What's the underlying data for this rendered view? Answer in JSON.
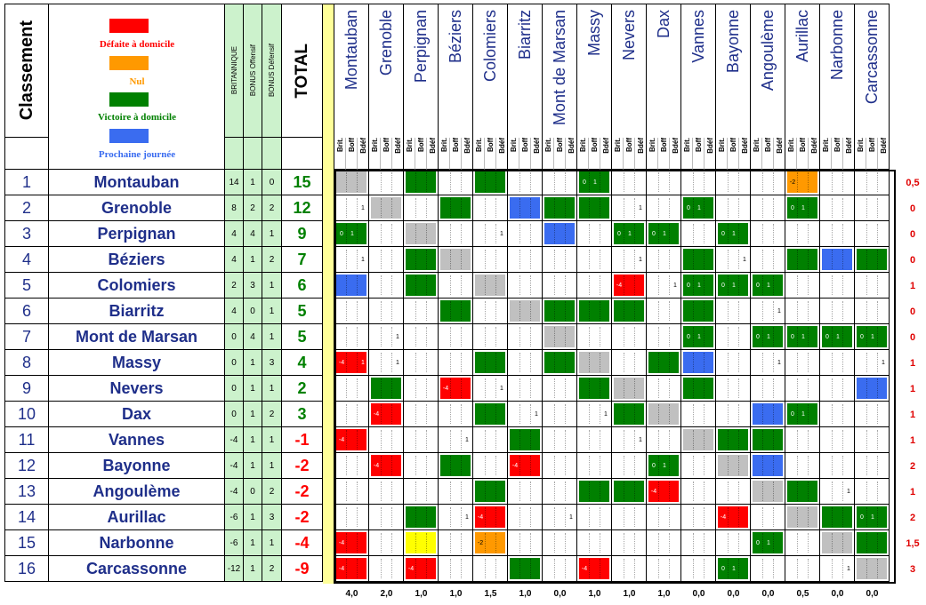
{
  "header": {
    "classement": "Classement",
    "stat_headers": [
      "BRITANNIQUE",
      "BONUS Offensif",
      "BONUS Défensif"
    ],
    "total": "TOTAL",
    "sub_labels": [
      "Brit.",
      "Boff",
      "Bdéf"
    ]
  },
  "legend": [
    {
      "label": "Défaite à domicile",
      "color": "#ff0000",
      "text_color": "#ff0000"
    },
    {
      "label": "Nul",
      "color": "#ff9900",
      "text_color": "#ff9900"
    },
    {
      "label": "Victoire à domicile",
      "color": "#008000",
      "text_color": "#008000"
    },
    {
      "label": "Prochaine journée",
      "color": "#3a6cf0",
      "text_color": "#3a6cf0"
    }
  ],
  "colors": {
    "green": "#008000",
    "red": "#ff0000",
    "orange": "#ff9900",
    "blue": "#3a6cf0",
    "grey": "#c0c0c0",
    "yellow": "#ffff00",
    "stat_bg": "#ccf2cc",
    "team_text": "#1f2f8a",
    "total_positive": "#008000",
    "total_negative": "#ff0000",
    "extra_text": "#e00000"
  },
  "teams": [
    {
      "rank": "1",
      "name": "Montauban",
      "brit": "14",
      "boff": "1",
      "bdef": "0",
      "total": "15",
      "extra": "0,5",
      "cells": [
        "X",
        "",
        "G",
        "",
        "G",
        "",
        "",
        "G|0|1|",
        "",
        "",
        "",
        "",
        "",
        "O|-2||",
        "",
        ""
      ]
    },
    {
      "rank": "2",
      "name": "Grenoble",
      "brit": "8",
      "boff": "2",
      "bdef": "2",
      "total": "12",
      "extra": "0",
      "cells": [
        "W|||1",
        "X",
        "",
        "G",
        "",
        "B",
        "G",
        "G",
        "W|||1",
        "",
        "G|0|1|",
        "",
        "",
        "G|0|1|",
        "",
        ""
      ]
    },
    {
      "rank": "3",
      "name": "Perpignan",
      "brit": "4",
      "boff": "4",
      "bdef": "1",
      "total": "9",
      "extra": "0",
      "cells": [
        "G|0|1|",
        "",
        "X",
        "",
        "W|||1",
        "",
        "B",
        "",
        "G|0|1|",
        "G|0|1|",
        "",
        "G|0|1|",
        "",
        "",
        "",
        ""
      ]
    },
    {
      "rank": "4",
      "name": "Béziers",
      "brit": "4",
      "boff": "1",
      "bdef": "2",
      "total": "7",
      "extra": "0",
      "cells": [
        "W|||1",
        "",
        "G",
        "X",
        "",
        "",
        "",
        "",
        "W|||1",
        "",
        "G",
        "W|||1",
        "",
        "G",
        "B",
        "G"
      ]
    },
    {
      "rank": "5",
      "name": "Colomiers",
      "brit": "2",
      "boff": "3",
      "bdef": "1",
      "total": "6",
      "extra": "1",
      "cells": [
        "B",
        "",
        "G",
        "",
        "X",
        "",
        "",
        "",
        "R|-4||",
        "W|||1",
        "G|0|1|",
        "G|0|1|",
        "G|0|1|",
        "",
        "",
        ""
      ]
    },
    {
      "rank": "6",
      "name": "Biarritz",
      "brit": "4",
      "boff": "0",
      "bdef": "1",
      "total": "5",
      "extra": "0",
      "cells": [
        "",
        "",
        "",
        "G",
        "",
        "X",
        "G",
        "G",
        "G",
        "",
        "G",
        "",
        "W|||1",
        "",
        "",
        ""
      ]
    },
    {
      "rank": "7",
      "name": "Mont de Marsan",
      "brit": "0",
      "boff": "4",
      "bdef": "1",
      "total": "5",
      "extra": "0",
      "cells": [
        "",
        "W|||1",
        "",
        "",
        "",
        "",
        "X",
        "",
        "",
        "",
        "G|0|1|",
        "",
        "G|0|1|",
        "G|0|1|",
        "G|0|1|",
        "G|0|1|"
      ]
    },
    {
      "rank": "8",
      "name": "Massy",
      "brit": "0",
      "boff": "1",
      "bdef": "3",
      "total": "4",
      "extra": "1",
      "cells": [
        "R|-4||1",
        "W|||1",
        "",
        "",
        "G",
        "",
        "G",
        "X",
        "",
        "G",
        "B",
        "",
        "W|||1",
        "",
        "",
        "W|||1"
      ]
    },
    {
      "rank": "9",
      "name": "Nevers",
      "brit": "0",
      "boff": "1",
      "bdef": "1",
      "total": "2",
      "extra": "1",
      "cells": [
        "",
        "G",
        "",
        "R|-4||",
        "W|||1",
        "",
        "",
        "G",
        "X",
        "",
        "G",
        "",
        "",
        "",
        "",
        "B"
      ]
    },
    {
      "rank": "10",
      "name": "Dax",
      "brit": "0",
      "boff": "1",
      "bdef": "2",
      "total": "3",
      "extra": "1",
      "cells": [
        "",
        "R|-4||",
        "",
        "",
        "G",
        "W|||1",
        "",
        "W|||1",
        "G",
        "X",
        "",
        "",
        "B",
        "G|0|1|",
        "",
        ""
      ]
    },
    {
      "rank": "11",
      "name": "Vannes",
      "brit": "-4",
      "boff": "1",
      "bdef": "1",
      "total": "-1",
      "extra": "1",
      "cells": [
        "R|-4||",
        "",
        "",
        "W|||1",
        "",
        "G",
        "",
        "",
        "W|||1",
        "",
        "X",
        "G",
        "G",
        "",
        "",
        ""
      ]
    },
    {
      "rank": "12",
      "name": "Bayonne",
      "brit": "-4",
      "boff": "1",
      "bdef": "1",
      "total": "-2",
      "extra": "2",
      "cells": [
        "",
        "R|-4||",
        "",
        "G",
        "",
        "R|-4||",
        "",
        "",
        "",
        "G|0|1|",
        "",
        "X",
        "B",
        "",
        "",
        ""
      ]
    },
    {
      "rank": "13",
      "name": "Angoulème",
      "brit": "-4",
      "boff": "0",
      "bdef": "2",
      "total": "-2",
      "extra": "1",
      "cells": [
        "",
        "",
        "",
        "",
        "G",
        "",
        "",
        "G",
        "G",
        "R|-4||",
        "",
        "",
        "X",
        "G",
        "W|||1",
        ""
      ]
    },
    {
      "rank": "14",
      "name": "Aurillac",
      "brit": "-6",
      "boff": "1",
      "bdef": "3",
      "total": "-2",
      "extra": "2",
      "cells": [
        "",
        "",
        "G",
        "W|||1",
        "R|-4||",
        "",
        "W|||1",
        "",
        "",
        "",
        "",
        "R|-4||",
        "",
        "X",
        "G",
        "G|0|1|"
      ]
    },
    {
      "rank": "15",
      "name": "Narbonne",
      "brit": "-6",
      "boff": "1",
      "bdef": "1",
      "total": "-4",
      "extra": "1,5",
      "cells": [
        "R|-4||",
        "",
        "Y",
        "",
        "O|-2||",
        "",
        "",
        "",
        "",
        "",
        "",
        "",
        "G|0|1|",
        "",
        "X",
        "G"
      ]
    },
    {
      "rank": "16",
      "name": "Carcassonne",
      "brit": "-12",
      "boff": "1",
      "bdef": "2",
      "total": "-9",
      "extra": "3",
      "cells": [
        "R|-4||",
        "",
        "R|-4||",
        "",
        "",
        "G",
        "",
        "R|-4||",
        "",
        "",
        "",
        "G|0|1|",
        "",
        "",
        "W|||1",
        "X"
      ]
    }
  ],
  "bottom_values": [
    "4,0",
    "2,0",
    "1,0",
    "1,0",
    "1,5",
    "1,0",
    "0,0",
    "1,0",
    "1,0",
    "1,0",
    "0,0",
    "0,0",
    "0,0",
    "0,5",
    "0,0",
    "0,0"
  ]
}
